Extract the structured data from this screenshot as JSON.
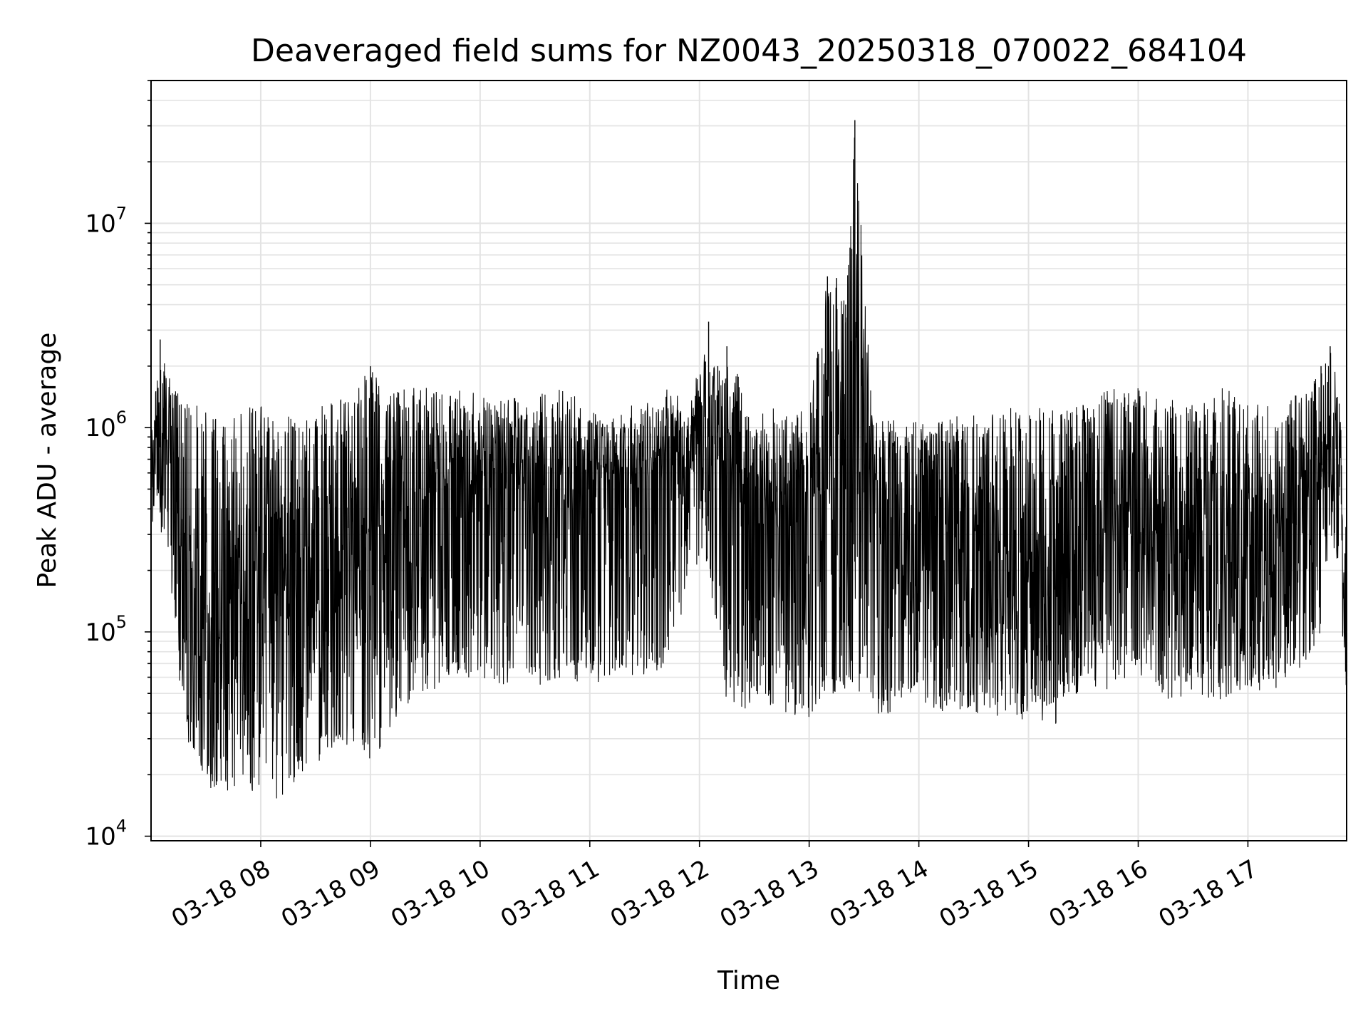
{
  "chart_data": {
    "type": "line",
    "title": "Deaveraged field sums for NZ0043_20250318_070022_684104",
    "xlabel": "Time",
    "ylabel": "Peak ADU - average",
    "yscale": "log",
    "ylim": [
      9500,
      50000000
    ],
    "xlim": [
      "03-18 07:00",
      "03-18 17:54"
    ],
    "grid": true,
    "x_ticks": [
      "03-18 08",
      "03-18 09",
      "03-18 10",
      "03-18 11",
      "03-18 12",
      "03-18 13",
      "03-18 14",
      "03-18 15",
      "03-18 16",
      "03-18 17"
    ],
    "y_ticks": [
      {
        "base": "10",
        "exp": "4"
      },
      {
        "base": "10",
        "exp": "5"
      },
      {
        "base": "10",
        "exp": "6"
      },
      {
        "base": "10",
        "exp": "7"
      }
    ],
    "line_color": "#000000",
    "series": [
      {
        "x": [
          "03-18 07:00",
          "03-18 07:05",
          "03-18 07:10",
          "03-18 07:15",
          "03-18 07:20",
          "03-18 07:25",
          "03-18 07:30",
          "03-18 07:35",
          "03-18 07:40",
          "03-18 07:45",
          "03-18 07:50",
          "03-18 07:55",
          "03-18 08:00",
          "03-18 08:10",
          "03-18 08:20",
          "03-18 08:30",
          "03-18 08:40",
          "03-18 08:50",
          "03-18 09:00",
          "03-18 09:10",
          "03-18 09:20",
          "03-18 09:30",
          "03-18 09:45",
          "03-18 10:00",
          "03-18 10:15",
          "03-18 10:30",
          "03-18 10:45",
          "03-18 11:00",
          "03-18 11:15",
          "03-18 11:30",
          "03-18 11:45",
          "03-18 11:55",
          "03-18 12:05",
          "03-18 12:10",
          "03-18 12:15",
          "03-18 12:30",
          "03-18 12:45",
          "03-18 13:00",
          "03-18 13:10",
          "03-18 13:15",
          "03-18 13:20",
          "03-18 13:25",
          "03-18 13:35",
          "03-18 13:45",
          "03-18 14:00",
          "03-18 14:15",
          "03-18 14:30",
          "03-18 14:45",
          "03-18 15:00",
          "03-18 15:15",
          "03-18 15:30",
          "03-18 15:45",
          "03-18 16:00",
          "03-18 16:15",
          "03-18 16:30",
          "03-18 16:45",
          "03-18 17:00",
          "03-18 17:15",
          "03-18 17:30",
          "03-18 17:40",
          "03-18 17:45",
          "03-18 17:50",
          "03-18 17:54"
        ],
        "high": [
          900000,
          2700000,
          1800000,
          1700000,
          1300000,
          1300000,
          1200000,
          1200000,
          1200000,
          1200000,
          1300000,
          1300000,
          1300000,
          1200000,
          1200000,
          1300000,
          1400000,
          1400000,
          2000000,
          1500000,
          1600000,
          1700000,
          1600000,
          1500000,
          1400000,
          1400000,
          1700000,
          1300000,
          1200000,
          1400000,
          1600000,
          1300000,
          3300000,
          2000000,
          2500000,
          1200000,
          1300000,
          1200000,
          5500000,
          5400000,
          4000000,
          32000000,
          1100000,
          1100000,
          1100000,
          1100000,
          1200000,
          1200000,
          1400000,
          1200000,
          1300000,
          1600000,
          1600000,
          1500000,
          1300000,
          1600000,
          1400000,
          1300000,
          1500000,
          2000000,
          2500000,
          1600000,
          400000
        ],
        "low": [
          350000,
          300000,
          200000,
          60000,
          30000,
          20000,
          17000,
          16000,
          15000,
          16000,
          15000,
          16000,
          17000,
          14000,
          18000,
          23000,
          25000,
          28000,
          21000,
          32000,
          40000,
          50000,
          55000,
          55000,
          55000,
          52000,
          60000,
          55000,
          60000,
          60000,
          70000,
          200000,
          180000,
          80000,
          45000,
          40000,
          40000,
          38000,
          50000,
          45000,
          50000,
          55000,
          38000,
          40000,
          45000,
          40000,
          40000,
          38000,
          36000,
          35000,
          50000,
          50000,
          60000,
          45000,
          50000,
          45000,
          45000,
          50000,
          60000,
          100000,
          300000,
          200000,
          38000
        ],
        "typical": [
          600000,
          800000,
          700000,
          250000,
          120000,
          100000,
          90000,
          90000,
          90000,
          100000,
          120000,
          150000,
          180000,
          150000,
          170000,
          200000,
          230000,
          250000,
          250000,
          300000,
          350000,
          400000,
          450000,
          450000,
          480000,
          500000,
          550000,
          500000,
          550000,
          600000,
          650000,
          750000,
          900000,
          700000,
          600000,
          500000,
          450000,
          420000,
          500000,
          480000,
          500000,
          500000,
          400000,
          350000,
          300000,
          250000,
          200000,
          150000,
          150000,
          120000,
          120000,
          300000,
          300000,
          250000,
          200000,
          200000,
          180000,
          200000,
          300000,
          500000,
          800000,
          600000,
          100000
        ]
      }
    ]
  }
}
